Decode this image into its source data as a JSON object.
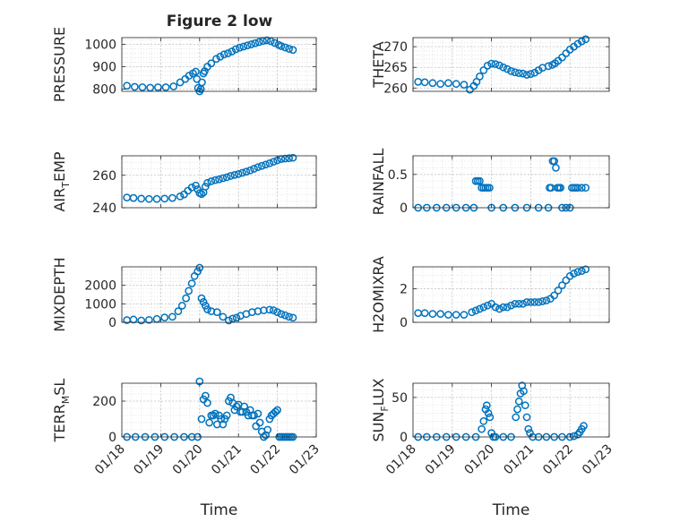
{
  "title": "Figure 2 low",
  "colors": {
    "marker": "#0072BD",
    "axis": "#262626",
    "grid": "#c8c8c8",
    "minor_grid": "#dcdcdc"
  },
  "chart_data": [
    {
      "type": "scatter",
      "title": "Figure 2 low",
      "xlabel": "",
      "ylabel": "PRESSURE",
      "x_range": [
        "01/18",
        "01/23"
      ],
      "x_ticks": [],
      "ylim": [
        790,
        1030
      ],
      "yticks": [
        800,
        900,
        1000
      ],
      "grid": "on (major + minor, dotted)",
      "series": [
        {
          "x": [
            0.13,
            0.33,
            0.53,
            0.73,
            0.93,
            1.13,
            1.33,
            1.5,
            1.63,
            1.73,
            1.83,
            1.9,
            1.93,
            1.96,
            2.0,
            2.03,
            2.06,
            2.1,
            2.13,
            2.2,
            2.3,
            2.43,
            2.53,
            2.63,
            2.73,
            2.83,
            2.93,
            3.03,
            3.13,
            3.23,
            3.33,
            3.43,
            3.53,
            3.63,
            3.73,
            3.83,
            3.93,
            4.03,
            4.1,
            4.2,
            4.3,
            4.4
          ],
          "y": [
            815,
            810,
            808,
            806,
            808,
            808,
            812,
            830,
            845,
            860,
            870,
            878,
            845,
            805,
            790,
            800,
            830,
            870,
            880,
            900,
            915,
            935,
            945,
            955,
            960,
            968,
            978,
            985,
            990,
            995,
            1000,
            1005,
            1010,
            1015,
            1018,
            1014,
            1006,
            998,
            992,
            986,
            980,
            975
          ]
        }
      ]
    },
    {
      "type": "scatter",
      "xlabel": "",
      "ylabel": "THETA",
      "x_range": [
        "01/18",
        "01/23"
      ],
      "x_ticks": [],
      "ylim": [
        259.2,
        272.2
      ],
      "yticks": [
        260,
        265,
        270
      ],
      "grid": "on (major + minor, dotted)",
      "series": [
        {
          "x": [
            0.13,
            0.3,
            0.5,
            0.7,
            0.9,
            1.1,
            1.3,
            1.45,
            1.55,
            1.62,
            1.7,
            1.8,
            1.9,
            2.0,
            2.1,
            2.2,
            2.3,
            2.4,
            2.5,
            2.6,
            2.7,
            2.8,
            2.9,
            3.0,
            3.1,
            3.2,
            3.3,
            3.45,
            3.55,
            3.62,
            3.7,
            3.8,
            3.9,
            4.0,
            4.1,
            4.2,
            4.3,
            4.4
          ],
          "y": [
            261.5,
            261.4,
            261.2,
            261.0,
            261.2,
            261.0,
            260.8,
            259.6,
            260.5,
            261.5,
            262.8,
            264.3,
            265.4,
            265.9,
            265.8,
            265.5,
            265.0,
            264.6,
            264.1,
            263.8,
            263.6,
            263.5,
            263.2,
            263.4,
            263.7,
            264.3,
            264.9,
            265.3,
            265.6,
            266.0,
            266.6,
            267.4,
            268.4,
            269.3,
            270.0,
            270.7,
            271.3,
            271.8
          ]
        }
      ]
    },
    {
      "type": "scatter",
      "xlabel": "",
      "ylabel": "AIR_TEMP",
      "x_range": [
        "01/18",
        "01/23"
      ],
      "x_ticks": [],
      "ylim": [
        240,
        272
      ],
      "yticks": [
        240,
        260
      ],
      "grid": "on (major + minor, dotted)",
      "series": [
        {
          "x": [
            0.13,
            0.3,
            0.5,
            0.7,
            0.9,
            1.1,
            1.3,
            1.5,
            1.6,
            1.7,
            1.8,
            1.9,
            1.95,
            2.0,
            2.05,
            2.1,
            2.15,
            2.2,
            2.3,
            2.4,
            2.5,
            2.6,
            2.7,
            2.8,
            2.9,
            3.0,
            3.1,
            3.2,
            3.3,
            3.4,
            3.5,
            3.6,
            3.7,
            3.8,
            3.9,
            4.0,
            4.1,
            4.2,
            4.3,
            4.4
          ],
          "y": [
            246.3,
            246.0,
            245.6,
            245.4,
            245.4,
            245.6,
            246.0,
            247.0,
            248.2,
            250.5,
            252.5,
            253.7,
            251.3,
            249.0,
            248.4,
            249.4,
            253.0,
            255.3,
            256.3,
            257.0,
            257.5,
            258.2,
            258.8,
            259.6,
            260.2,
            260.8,
            261.5,
            262.2,
            263.0,
            264.0,
            265.0,
            265.8,
            266.6,
            267.4,
            268.3,
            269.2,
            270.0,
            270.3,
            270.5,
            270.8
          ]
        }
      ]
    },
    {
      "type": "scatter",
      "xlabel": "",
      "ylabel": "RAINFALL",
      "x_range": [
        "01/18",
        "01/23"
      ],
      "x_ticks": [],
      "ylim": [
        0,
        0.78
      ],
      "yticks": [
        0,
        0.5
      ],
      "grid": "on (major + minor, dotted)",
      "series": [
        {
          "x": [
            0.13,
            0.35,
            0.6,
            0.85,
            1.1,
            1.35,
            1.55,
            1.6,
            1.65,
            1.7,
            1.75,
            1.8,
            1.85,
            1.9,
            1.95,
            2.0,
            2.3,
            2.6,
            2.9,
            3.2,
            3.45,
            3.48,
            3.52,
            3.56,
            3.6,
            3.64,
            3.68,
            3.72,
            3.76,
            3.8,
            3.9,
            4.0,
            4.05,
            4.1,
            4.15,
            4.2,
            4.3,
            4.4
          ],
          "y": [
            0,
            0,
            0,
            0,
            0,
            0,
            0,
            0.4,
            0.4,
            0.4,
            0.3,
            0.3,
            0.3,
            0.3,
            0.3,
            0,
            0,
            0,
            0,
            0,
            0,
            0.3,
            0.3,
            0.7,
            0.7,
            0.6,
            0.3,
            0.3,
            0.3,
            0,
            0,
            0,
            0.3,
            0.3,
            0.3,
            0.3,
            0.3,
            0.3
          ]
        }
      ]
    },
    {
      "type": "scatter",
      "xlabel": "",
      "ylabel": "MIXDEPTH",
      "x_range": [
        "01/18",
        "01/23"
      ],
      "x_ticks": [],
      "ylim": [
        0,
        3000
      ],
      "yticks": [
        0,
        1000,
        2000
      ],
      "grid": "on (major + minor, dotted)",
      "series": [
        {
          "x": [
            0.13,
            0.3,
            0.5,
            0.7,
            0.9,
            1.1,
            1.3,
            1.45,
            1.55,
            1.65,
            1.72,
            1.8,
            1.87,
            1.95,
            2.0,
            2.05,
            2.1,
            2.15,
            2.2,
            2.3,
            2.45,
            2.6,
            2.75,
            2.85,
            2.95,
            3.05,
            3.2,
            3.35,
            3.5,
            3.65,
            3.8,
            3.9,
            4.0,
            4.1,
            4.2,
            4.3,
            4.4
          ],
          "y": [
            120,
            150,
            100,
            130,
            180,
            260,
            300,
            600,
            900,
            1300,
            1700,
            2100,
            2500,
            2750,
            2950,
            1300,
            1100,
            900,
            700,
            600,
            550,
            300,
            100,
            200,
            250,
            350,
            450,
            550,
            600,
            650,
            680,
            650,
            550,
            450,
            380,
            300,
            250
          ]
        }
      ]
    },
    {
      "type": "scatter",
      "xlabel": "",
      "ylabel": "H2OMIXRA",
      "x_range": [
        "01/18",
        "01/23"
      ],
      "x_ticks": [],
      "ylim": [
        0,
        3.3
      ],
      "yticks": [
        0,
        2
      ],
      "grid": "on (major + minor, dotted)",
      "series": [
        {
          "x": [
            0.13,
            0.3,
            0.5,
            0.7,
            0.9,
            1.1,
            1.3,
            1.5,
            1.6,
            1.7,
            1.8,
            1.9,
            2.0,
            2.1,
            2.2,
            2.3,
            2.4,
            2.5,
            2.6,
            2.7,
            2.8,
            2.9,
            3.0,
            3.1,
            3.2,
            3.3,
            3.4,
            3.5,
            3.6,
            3.7,
            3.8,
            3.9,
            4.0,
            4.1,
            4.2,
            4.3,
            4.4
          ],
          "y": [
            0.55,
            0.55,
            0.5,
            0.5,
            0.45,
            0.45,
            0.45,
            0.6,
            0.7,
            0.8,
            0.9,
            1.0,
            1.1,
            0.9,
            0.8,
            0.9,
            0.9,
            1.0,
            1.1,
            1.1,
            1.1,
            1.2,
            1.2,
            1.2,
            1.2,
            1.25,
            1.3,
            1.4,
            1.6,
            1.9,
            2.2,
            2.5,
            2.75,
            2.9,
            3.0,
            3.05,
            3.15
          ]
        }
      ]
    },
    {
      "type": "scatter",
      "xlabel": "Time",
      "ylabel": "TERR_MSL",
      "x_range": [
        "01/18",
        "01/23"
      ],
      "x_ticks": [
        "01/18",
        "01/19",
        "01/20",
        "01/21",
        "01/22",
        "01/23"
      ],
      "ylim": [
        0,
        300
      ],
      "yticks": [
        0,
        200
      ],
      "grid": "on (major + minor, dotted)",
      "series": [
        {
          "x": [
            0.13,
            0.35,
            0.6,
            0.85,
            1.1,
            1.35,
            1.6,
            1.8,
            1.95,
            2.0,
            2.05,
            2.1,
            2.15,
            2.2,
            2.25,
            2.3,
            2.35,
            2.4,
            2.45,
            2.5,
            2.55,
            2.6,
            2.65,
            2.7,
            2.75,
            2.8,
            2.85,
            2.9,
            2.95,
            3.0,
            3.05,
            3.1,
            3.15,
            3.2,
            3.25,
            3.3,
            3.35,
            3.4,
            3.45,
            3.5,
            3.55,
            3.6,
            3.65,
            3.7,
            3.75,
            3.8,
            3.85,
            3.9,
            3.95,
            4.0,
            4.05,
            4.1,
            4.15,
            4.2,
            4.25,
            4.3,
            4.35,
            4.4
          ],
          "y": [
            0,
            0,
            0,
            0,
            0,
            0,
            0,
            0,
            0,
            310,
            100,
            210,
            230,
            190,
            80,
            120,
            120,
            130,
            70,
            120,
            100,
            70,
            100,
            120,
            200,
            220,
            190,
            150,
            170,
            180,
            140,
            140,
            170,
            140,
            120,
            150,
            120,
            120,
            60,
            130,
            80,
            30,
            0,
            10,
            40,
            100,
            120,
            130,
            140,
            150,
            0,
            0,
            0,
            0,
            0,
            0,
            0,
            0
          ]
        }
      ]
    },
    {
      "type": "scatter",
      "xlabel": "Time",
      "ylabel": "SUN_FLUX",
      "x_range": [
        "01/18",
        "01/23"
      ],
      "x_ticks": [
        "01/18",
        "01/19",
        "01/20",
        "01/21",
        "01/22",
        "01/23"
      ],
      "ylim": [
        0,
        68
      ],
      "yticks": [
        0,
        50
      ],
      "grid": "on (major + minor, dotted)",
      "series": [
        {
          "x": [
            0.13,
            0.35,
            0.6,
            0.85,
            1.1,
            1.35,
            1.6,
            1.75,
            1.8,
            1.85,
            1.88,
            1.92,
            1.96,
            2.0,
            2.05,
            2.1,
            2.3,
            2.5,
            2.62,
            2.66,
            2.7,
            2.74,
            2.78,
            2.82,
            2.86,
            2.9,
            2.94,
            2.98,
            3.05,
            3.2,
            3.4,
            3.6,
            3.8,
            4.0,
            4.1,
            4.2,
            4.25,
            4.3,
            4.35
          ],
          "y": [
            0,
            0,
            0,
            0,
            0,
            0,
            0,
            10,
            20,
            35,
            40,
            30,
            25,
            5,
            0,
            0,
            0,
            0,
            25,
            35,
            45,
            55,
            65,
            58,
            40,
            25,
            10,
            5,
            0,
            0,
            0,
            0,
            0,
            0,
            1,
            3,
            6,
            10,
            14
          ]
        }
      ]
    }
  ]
}
